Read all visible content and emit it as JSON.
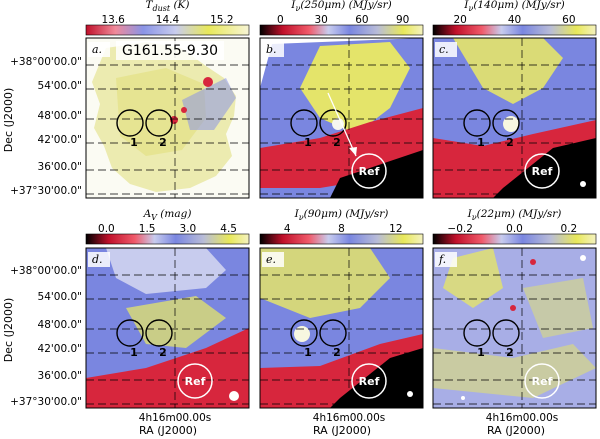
{
  "source": "G161.55-9.30",
  "dec_label": "Dec (J2000)",
  "ra_label": "RA (J2000)",
  "ra_tick": "4h16m00.00s",
  "dec_ticks": [
    "+38°00'00.0\"",
    "54'00.0\"",
    "48'00.0\"",
    "42'00.0\"",
    "36'00.0\"",
    "+37°30'00.0\""
  ],
  "ref_label": "Ref",
  "ring_labels": [
    "1",
    "2"
  ],
  "panels": [
    {
      "letter": "a.",
      "quantity": "T",
      "sub": "dust",
      "unit": "(K)",
      "ticks": [
        "13.6",
        "14.4",
        "15.2"
      ],
      "cmap": "tdust",
      "map": "tdust",
      "show_source": true,
      "show_ref": false,
      "show_arrow": false
    },
    {
      "letter": "b.",
      "quantity": "I",
      "sub": "ν",
      "arg": "(250μm)",
      "unit": "(MJy/sr)",
      "ticks": [
        "0",
        "30",
        "60",
        "90"
      ],
      "cmap": "int",
      "map": "i250",
      "show_source": false,
      "show_ref": true,
      "show_arrow": true
    },
    {
      "letter": "c.",
      "quantity": "I",
      "sub": "ν",
      "arg": "(140μm)",
      "unit": "(MJy/sr)",
      "ticks": [
        "20",
        "40",
        "60"
      ],
      "cmap": "int",
      "map": "i140",
      "show_source": false,
      "show_ref": true,
      "show_arrow": false
    },
    {
      "letter": "d.",
      "quantity": "A",
      "sub": "V",
      "unit": "(mag)",
      "ticks": [
        "0.0",
        "1.5",
        "3.0",
        "4.5"
      ],
      "cmap": "int",
      "map": "av",
      "show_source": false,
      "show_ref": true,
      "show_arrow": false
    },
    {
      "letter": "e.",
      "quantity": "I",
      "sub": "ν",
      "arg": "(90μm)",
      "unit": "(MJy/sr)",
      "ticks": [
        "4",
        "8",
        "12"
      ],
      "cmap": "int",
      "map": "i90",
      "show_source": false,
      "show_ref": true,
      "show_arrow": false
    },
    {
      "letter": "f.",
      "quantity": "I",
      "sub": "ν",
      "arg": "(22μm)",
      "unit": "(MJy/sr)",
      "ticks": [
        "−0.2",
        "0.0",
        "0.2"
      ],
      "cmap": "int",
      "map": "i22",
      "show_source": false,
      "show_ref": true,
      "show_arrow": false
    }
  ],
  "colors": {
    "red": "#d7263d",
    "blue": "#7a86e0",
    "yellow": "#e6e64a",
    "cream": "#f4f2d2",
    "black": "#000000",
    "white": "#ffffff"
  }
}
